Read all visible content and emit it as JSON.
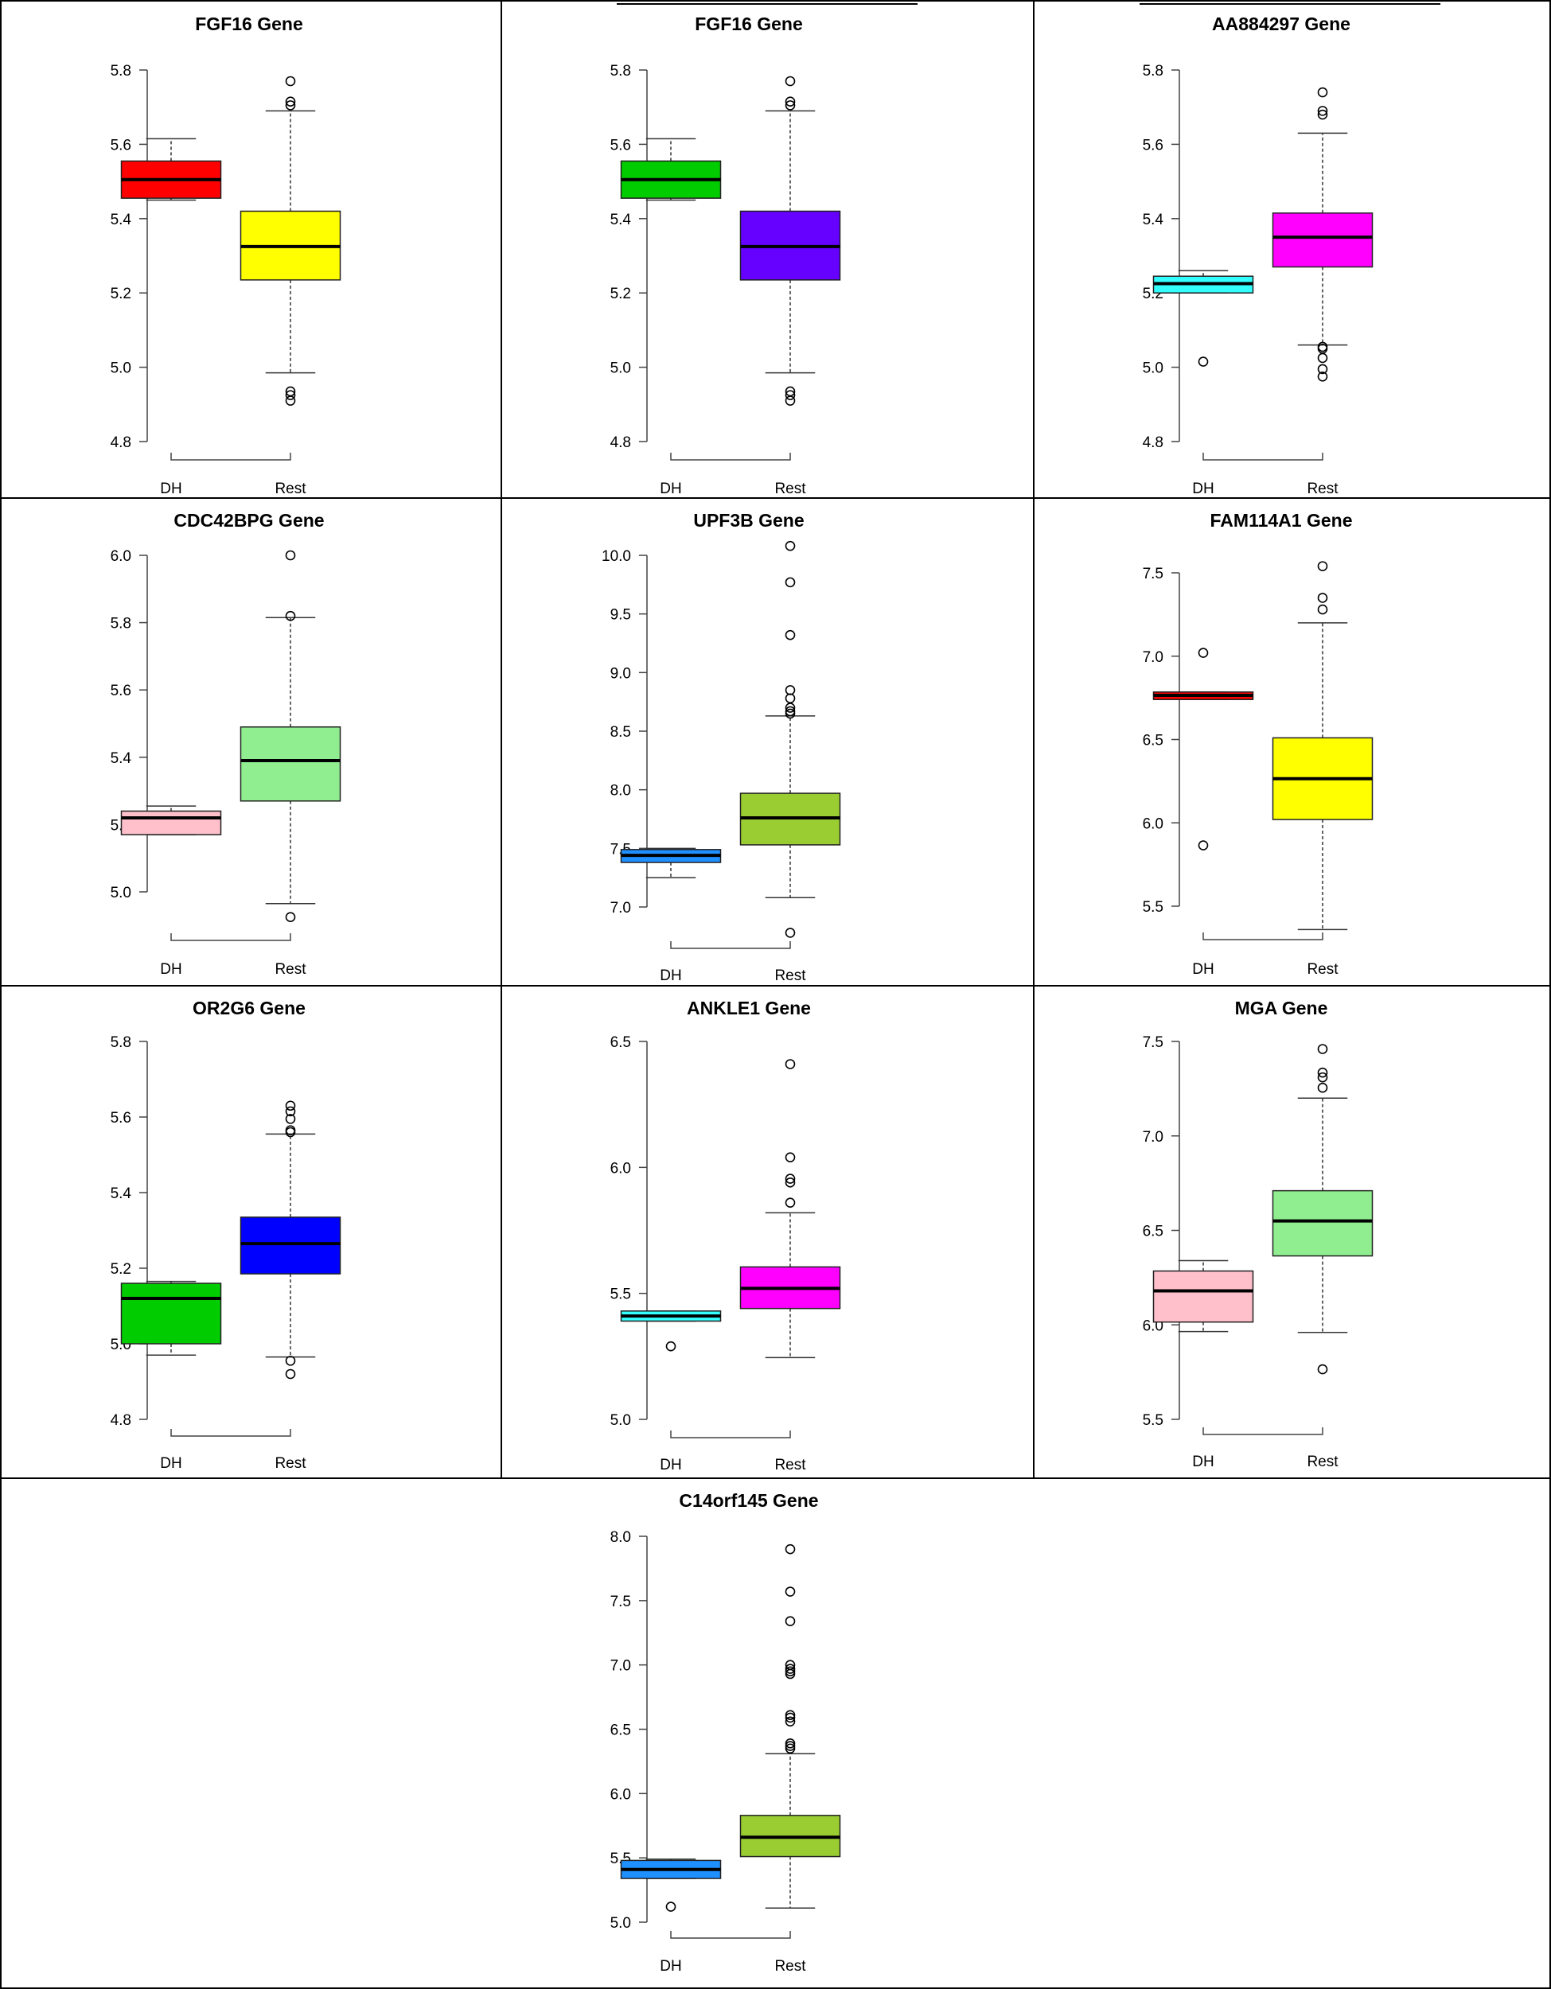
{
  "figure": {
    "rows": [
      [
        "FGF16 Gene",
        "FGF16 Gene",
        "AA884297 Gene"
      ],
      [
        "CDC42BPG Gene",
        "UPF3B Gene",
        "FAM114A1 Gene"
      ],
      [
        "OR2G6 Gene",
        "ANKLE1 Gene",
        "MGA Gene"
      ],
      [
        "C14orf145 Gene"
      ]
    ]
  },
  "chart_data": [
    {
      "type": "boxplot",
      "title": "FGF16 Gene",
      "categories": [
        "DH",
        "Rest"
      ],
      "yticks": [
        "4.8",
        "5.0",
        "5.2",
        "5.4",
        "5.6",
        "5.8"
      ],
      "ylim": [
        4.8,
        5.8
      ],
      "boxes": [
        {
          "name": "DH",
          "color": "#ff0000",
          "whisker_low": 5.45,
          "q1": 5.455,
          "median": 5.505,
          "q3": 5.555,
          "whisker_high": 5.615,
          "outliers": []
        },
        {
          "name": "Rest",
          "color": "#ffff00",
          "whisker_low": 4.985,
          "q1": 5.235,
          "median": 5.325,
          "q3": 5.42,
          "whisker_high": 5.69,
          "outliers": [
            5.77,
            5.715,
            5.705,
            4.935,
            4.925,
            4.91
          ]
        }
      ]
    },
    {
      "type": "boxplot",
      "title": "FGF16 Gene",
      "categories": [
        "DH",
        "Rest"
      ],
      "yticks": [
        "4.8",
        "5.0",
        "5.2",
        "5.4",
        "5.6",
        "5.8"
      ],
      "ylim": [
        4.8,
        5.8
      ],
      "boxes": [
        {
          "name": "DH",
          "color": "#00cc00",
          "whisker_low": 5.45,
          "q1": 5.455,
          "median": 5.505,
          "q3": 5.555,
          "whisker_high": 5.615,
          "outliers": []
        },
        {
          "name": "Rest",
          "color": "#6600ff",
          "whisker_low": 4.985,
          "q1": 5.235,
          "median": 5.325,
          "q3": 5.42,
          "whisker_high": 5.69,
          "outliers": [
            5.77,
            5.715,
            5.705,
            4.935,
            4.925,
            4.91
          ]
        }
      ]
    },
    {
      "type": "boxplot",
      "title": "AA884297 Gene",
      "categories": [
        "DH",
        "Rest"
      ],
      "yticks": [
        "4.8",
        "5.0",
        "5.2",
        "5.4",
        "5.6",
        "5.8"
      ],
      "ylim": [
        4.8,
        5.8
      ],
      "boxes": [
        {
          "name": "DH",
          "color": "#33ffff",
          "whisker_low": 5.2,
          "q1": 5.2,
          "median": 5.225,
          "q3": 5.245,
          "whisker_high": 5.26,
          "outliers": [
            5.015
          ]
        },
        {
          "name": "Rest",
          "color": "#ff00ff",
          "whisker_low": 5.06,
          "q1": 5.27,
          "median": 5.35,
          "q3": 5.415,
          "whisker_high": 5.63,
          "outliers": [
            5.74,
            5.69,
            5.68,
            5.055,
            5.05,
            5.025,
            4.995,
            4.975
          ]
        }
      ]
    },
    {
      "type": "boxplot",
      "title": "CDC42BPG Gene",
      "categories": [
        "DH",
        "Rest"
      ],
      "yticks": [
        "5.0",
        "5.2",
        "5.4",
        "5.6",
        "5.8",
        "6.0"
      ],
      "ylim": [
        5.0,
        6.0
      ],
      "boxes": [
        {
          "name": "DH",
          "color": "#ffc0cb",
          "whisker_low": 5.17,
          "q1": 5.17,
          "median": 5.22,
          "q3": 5.24,
          "whisker_high": 5.255,
          "outliers": []
        },
        {
          "name": "Rest",
          "color": "#90ee90",
          "whisker_low": 4.965,
          "q1": 5.27,
          "median": 5.39,
          "q3": 5.49,
          "whisker_high": 5.815,
          "outliers": [
            6.0,
            5.82,
            4.925
          ]
        }
      ]
    },
    {
      "type": "boxplot",
      "title": "UPF3B Gene",
      "categories": [
        "DH",
        "Rest"
      ],
      "yticks": [
        "7.0",
        "7.5",
        "8.0",
        "8.5",
        "9.0",
        "9.5",
        "10.0"
      ],
      "ylim": [
        7.0,
        10.0
      ],
      "boxes": [
        {
          "name": "DH",
          "color": "#1e90ff",
          "whisker_low": 7.25,
          "q1": 7.38,
          "median": 7.44,
          "q3": 7.49,
          "whisker_high": 7.5,
          "outliers": []
        },
        {
          "name": "Rest",
          "color": "#9acd32",
          "whisker_low": 7.08,
          "q1": 7.53,
          "median": 7.76,
          "q3": 7.97,
          "whisker_high": 8.63,
          "outliers": [
            10.08,
            9.77,
            9.32,
            8.85,
            8.78,
            8.7,
            8.67,
            8.65,
            6.78
          ]
        }
      ]
    },
    {
      "type": "boxplot",
      "title": "FAM114A1 Gene",
      "categories": [
        "DH",
        "Rest"
      ],
      "yticks": [
        "5.5",
        "6.0",
        "6.5",
        "7.0",
        "7.5"
      ],
      "ylim": [
        5.5,
        7.5
      ],
      "boxes": [
        {
          "name": "DH",
          "color": "#ff0000",
          "whisker_low": 6.74,
          "q1": 6.74,
          "median": 6.765,
          "q3": 6.785,
          "whisker_high": 6.785,
          "outliers": [
            7.02,
            5.865
          ]
        },
        {
          "name": "Rest",
          "color": "#ffff00",
          "whisker_low": 5.36,
          "q1": 6.02,
          "median": 6.265,
          "q3": 6.51,
          "whisker_high": 7.2,
          "outliers": [
            7.54,
            7.35,
            7.28
          ]
        }
      ]
    },
    {
      "type": "boxplot",
      "title": "OR2G6 Gene",
      "categories": [
        "DH",
        "Rest"
      ],
      "yticks": [
        "4.8",
        "5.0",
        "5.2",
        "5.4",
        "5.6",
        "5.8"
      ],
      "ylim": [
        4.8,
        5.8
      ],
      "boxes": [
        {
          "name": "DH",
          "color": "#00cc00",
          "whisker_low": 4.97,
          "q1": 5.0,
          "median": 5.12,
          "q3": 5.16,
          "whisker_high": 5.165,
          "outliers": []
        },
        {
          "name": "Rest",
          "color": "#0000ff",
          "whisker_low": 4.965,
          "q1": 5.185,
          "median": 5.265,
          "q3": 5.335,
          "whisker_high": 5.555,
          "outliers": [
            5.63,
            5.615,
            5.595,
            5.565,
            5.56,
            4.955,
            4.92
          ]
        }
      ]
    },
    {
      "type": "boxplot",
      "title": "ANKLE1 Gene",
      "categories": [
        "DH",
        "Rest"
      ],
      "yticks": [
        "5.0",
        "5.5",
        "6.0",
        "6.5"
      ],
      "ylim": [
        5.0,
        6.5
      ],
      "boxes": [
        {
          "name": "DH",
          "color": "#33ffff",
          "whisker_low": 5.39,
          "q1": 5.39,
          "median": 5.41,
          "q3": 5.43,
          "whisker_high": 5.43,
          "outliers": [
            5.29
          ]
        },
        {
          "name": "Rest",
          "color": "#ff00ff",
          "whisker_low": 5.245,
          "q1": 5.44,
          "median": 5.52,
          "q3": 5.605,
          "whisker_high": 5.82,
          "outliers": [
            6.41,
            6.04,
            5.955,
            5.94,
            5.86
          ]
        }
      ]
    },
    {
      "type": "boxplot",
      "title": "MGA Gene",
      "categories": [
        "DH",
        "Rest"
      ],
      "yticks": [
        "5.5",
        "6.0",
        "6.5",
        "7.0",
        "7.5"
      ],
      "ylim": [
        5.5,
        7.5
      ],
      "boxes": [
        {
          "name": "DH",
          "color": "#ffc0cb",
          "whisker_low": 5.965,
          "q1": 6.015,
          "median": 6.18,
          "q3": 6.285,
          "whisker_high": 6.34,
          "outliers": []
        },
        {
          "name": "Rest",
          "color": "#90ee90",
          "whisker_low": 5.96,
          "q1": 6.365,
          "median": 6.55,
          "q3": 6.71,
          "whisker_high": 7.2,
          "outliers": [
            7.46,
            7.335,
            7.31,
            7.255,
            5.765
          ]
        }
      ]
    },
    {
      "type": "boxplot",
      "title": "C14orf145 Gene",
      "categories": [
        "DH",
        "Rest"
      ],
      "yticks": [
        "5.0",
        "5.5",
        "6.0",
        "6.5",
        "7.0",
        "7.5",
        "8.0"
      ],
      "ylim": [
        5.0,
        8.0
      ],
      "boxes": [
        {
          "name": "DH",
          "color": "#1e90ff",
          "whisker_low": 5.34,
          "q1": 5.34,
          "median": 5.41,
          "q3": 5.48,
          "whisker_high": 5.49,
          "outliers": [
            5.12
          ]
        },
        {
          "name": "Rest",
          "color": "#9acd32",
          "whisker_low": 5.11,
          "q1": 5.51,
          "median": 5.66,
          "q3": 5.83,
          "whisker_high": 6.31,
          "outliers": [
            7.9,
            7.57,
            7.34,
            7.0,
            6.97,
            6.95,
            6.93,
            6.61,
            6.59,
            6.56,
            6.39,
            6.37,
            6.35
          ]
        }
      ]
    }
  ]
}
